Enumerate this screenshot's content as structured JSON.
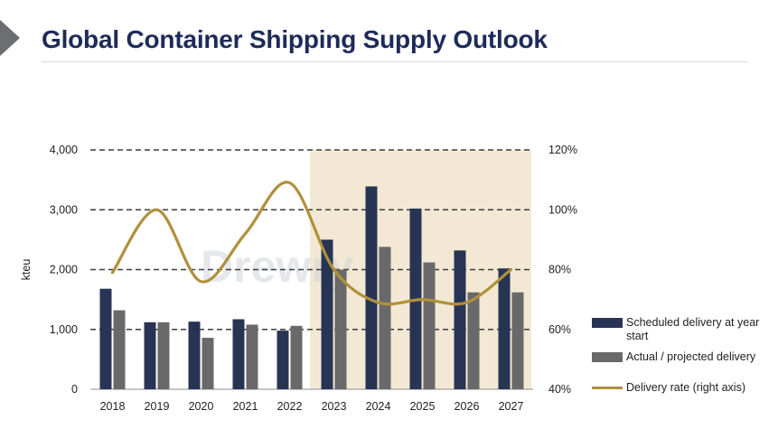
{
  "title": "Global Container Shipping Supply Outlook",
  "watermark": "Drewry",
  "colors": {
    "scheduled": "#283454",
    "actual": "#696969",
    "rate": "#b0903a",
    "highlight": "#f3e8d3",
    "title": "#1e2b59"
  },
  "legend": {
    "scheduled": "Scheduled delivery at year start",
    "actual": "Actual / projected delivery",
    "rate": "Delivery rate (right axis)"
  },
  "chart_data": {
    "type": "bar",
    "categories": [
      "2018",
      "2019",
      "2020",
      "2021",
      "2022",
      "2023",
      "2024",
      "2025",
      "2026",
      "2027"
    ],
    "series": [
      {
        "name": "Scheduled delivery at year start",
        "type": "bar",
        "axis": "left",
        "values": [
          1680,
          1120,
          1130,
          1170,
          980,
          2500,
          3390,
          3020,
          2320,
          2020
        ]
      },
      {
        "name": "Actual / projected delivery",
        "type": "bar",
        "axis": "left",
        "values": [
          1320,
          1120,
          860,
          1080,
          1060,
          2000,
          2380,
          2120,
          1620,
          1620
        ]
      },
      {
        "name": "Delivery rate (right axis)",
        "type": "line",
        "axis": "right",
        "smooth": true,
        "values": [
          79,
          100,
          76,
          92,
          109,
          80,
          69,
          70,
          69,
          80
        ]
      }
    ],
    "ylabel": "kteu",
    "ylim": [
      0,
      4000
    ],
    "yticks": [
      "0",
      "1,000",
      "2,000",
      "3,000",
      "4,000"
    ],
    "y2lim": [
      40,
      120
    ],
    "y2ticks": [
      "40%",
      "60%",
      "80%",
      "100%",
      "120%"
    ],
    "highlight_from": "2023",
    "grid": "dashed horizontal",
    "legend_position": "bottom-right"
  }
}
